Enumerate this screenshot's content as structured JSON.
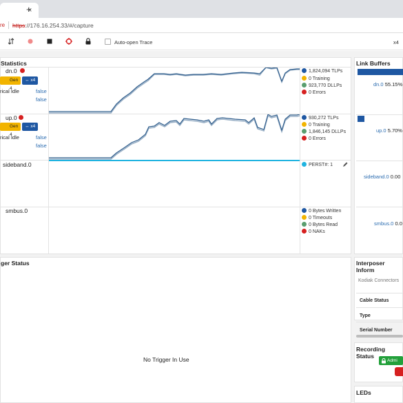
{
  "browser": {
    "tab_close": "×",
    "new_tab": "+",
    "insecure_label": "re",
    "url_protocol": "https",
    "url_rest": "://176.16.254.33/#/capture"
  },
  "toolbar": {
    "auto_open_trace_label": "Auto-open Trace",
    "zoom_label": "x4"
  },
  "statistics": {
    "title": "Statistics",
    "lanes": [
      {
        "name": "dn.0",
        "gen_label": "Gen 4",
        "width_label": "x4",
        "idle_label": "rical Idle",
        "bool1": "false",
        "bool2": "false",
        "legend": [
          "1,824,094 TLPs",
          "0 Training",
          "923,770 DLLPs",
          "0 Errors"
        ]
      },
      {
        "name": "up.0",
        "gen_label": "Gen 4",
        "width_label": "x4",
        "idle_label": "rical Idle",
        "bool1": "false",
        "bool2": "false",
        "legend": [
          "930,272 TLPs",
          "0 Training",
          "1,846,145 DLLPs",
          "0 Errors"
        ]
      },
      {
        "name": "sideband.0",
        "legend": [
          "PERST#: 1"
        ]
      },
      {
        "name": "smbus.0",
        "legend": [
          "0 Bytes Written",
          "0 Timeouts",
          "0 Bytes Read",
          "0 NAKs"
        ]
      }
    ],
    "legend_colors": [
      "#1e57a2",
      "#f2b400",
      "#5a9e6f",
      "#d62020"
    ],
    "perst_color": "#1fb3e0"
  },
  "link_buffers": {
    "title": "Link Buffers",
    "items": [
      {
        "name": "dn.0",
        "value": "55.15%"
      },
      {
        "name": "up.0",
        "value": "5.70%"
      },
      {
        "name": "sideband.0",
        "value": "0.00"
      },
      {
        "name": "smbus.0",
        "value": "0.0"
      }
    ]
  },
  "trigger": {
    "title": "ger Status",
    "empty_text": "No Trigger In Use"
  },
  "interposer": {
    "title": "Interposer Inform",
    "kodiak": "Kodiak Connectors",
    "rows": [
      "Cable Status",
      "Type",
      "Serial Number"
    ]
  },
  "recording": {
    "title": "Recording Status",
    "admin_label": "Admi"
  },
  "leds": {
    "title": "LEDs"
  }
}
